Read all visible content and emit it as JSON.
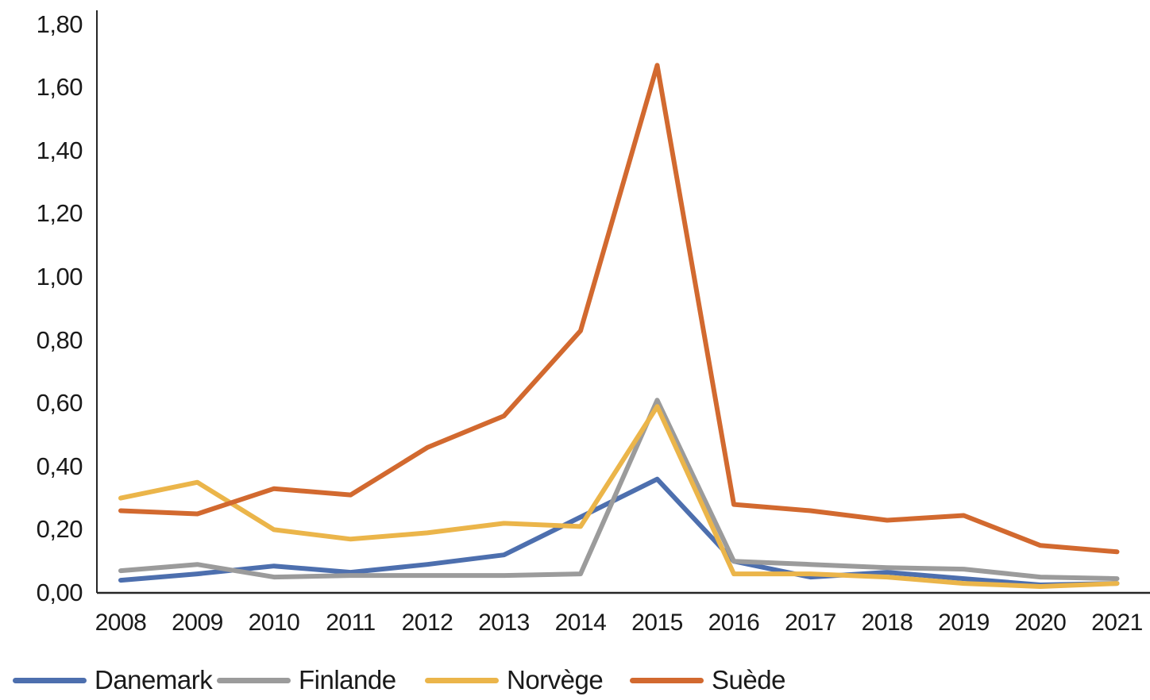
{
  "chart_data": {
    "type": "line",
    "title": "",
    "xlabel": "",
    "ylabel": "",
    "categories": [
      "2008",
      "2009",
      "2010",
      "2011",
      "2012",
      "2013",
      "2014",
      "2015",
      "2016",
      "2017",
      "2018",
      "2019",
      "2020",
      "2021"
    ],
    "series": [
      {
        "name": "Danemark",
        "color": "#4d6fae",
        "values": [
          0.04,
          0.06,
          0.085,
          0.065,
          0.09,
          0.12,
          0.24,
          0.36,
          0.1,
          0.05,
          0.065,
          0.045,
          0.025,
          0.03
        ]
      },
      {
        "name": "Finlande",
        "color": "#9b9b9b",
        "values": [
          0.07,
          0.09,
          0.05,
          0.055,
          0.055,
          0.055,
          0.06,
          0.61,
          0.1,
          0.09,
          0.08,
          0.075,
          0.05,
          0.045
        ]
      },
      {
        "name": "Norvège",
        "color": "#ebb54a",
        "values": [
          0.3,
          0.35,
          0.2,
          0.17,
          0.19,
          0.22,
          0.21,
          0.59,
          0.06,
          0.06,
          0.05,
          0.03,
          0.02,
          0.03
        ]
      },
      {
        "name": "Suède",
        "color": "#d2692f",
        "values": [
          0.26,
          0.25,
          0.33,
          0.31,
          0.46,
          0.56,
          0.83,
          1.67,
          0.28,
          0.26,
          0.23,
          0.245,
          0.15,
          0.13
        ]
      }
    ],
    "ylim": [
      0,
      1.8
    ],
    "ytick_step": 0.2,
    "ytick_labels": [
      "0,00",
      "0,20",
      "0,40",
      "0,60",
      "0,80",
      "1,00",
      "1,20",
      "1,40",
      "1,60",
      "1,80"
    ],
    "decimal_separator": ",",
    "grid": false,
    "legend_position": "bottom-left",
    "axis_color": "#262626",
    "text_color": "#1a1a1a"
  }
}
